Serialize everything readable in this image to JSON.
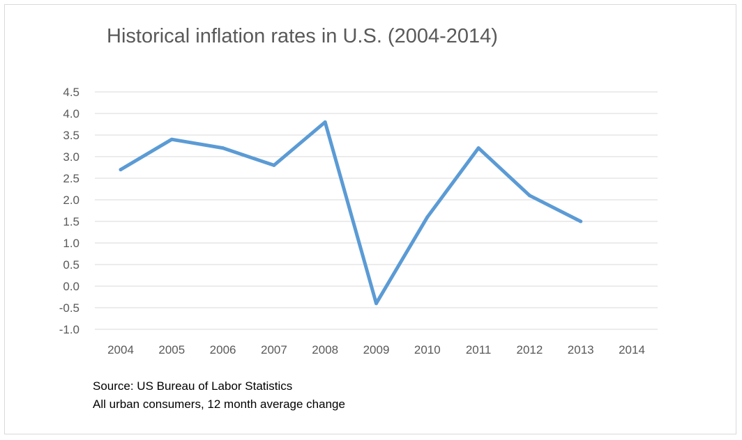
{
  "chart_data": {
    "type": "line",
    "title": "Historical inflation rates in U.S. (2004-2014)",
    "categories": [
      "2004",
      "2005",
      "2006",
      "2007",
      "2008",
      "2009",
      "2010",
      "2011",
      "2012",
      "2013",
      "2014"
    ],
    "series": [
      {
        "values": [
          2.7,
          3.4,
          3.2,
          2.8,
          3.8,
          -0.4,
          1.6,
          3.2,
          2.1,
          1.5,
          null
        ],
        "color": "#5b9bd5"
      }
    ],
    "y_ticks": [
      "4.5",
      "4.0",
      "3.5",
      "3.0",
      "2.5",
      "2.0",
      "1.5",
      "1.0",
      "0.5",
      "0.0",
      "-0.5",
      "-1.0"
    ],
    "ylim": [
      -1.0,
      4.5
    ],
    "grid": true,
    "legend": "none"
  },
  "notes": {
    "source": "Source: US Bureau of Labor Statistics",
    "description": "All urban consumers, 12 month average change"
  }
}
